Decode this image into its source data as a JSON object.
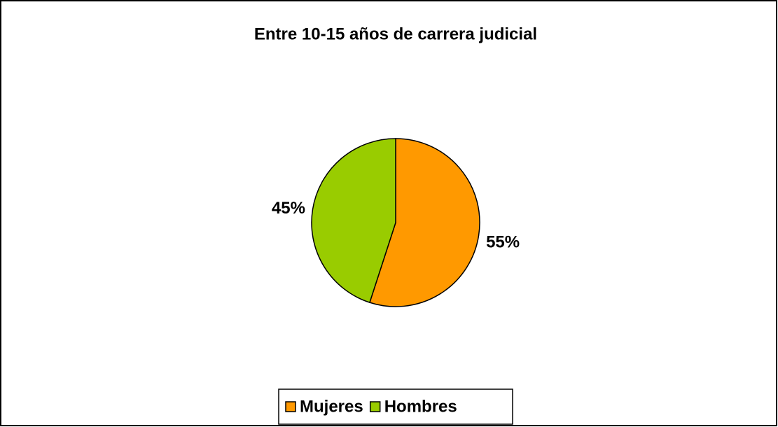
{
  "chart_data": {
    "type": "pie",
    "title": "Entre 10-15 años de carrera judicial",
    "categories": [
      "Mujeres",
      "Hombres"
    ],
    "values": [
      55,
      45
    ],
    "value_labels": [
      "55%",
      "45%"
    ],
    "colors": [
      "#ff9900",
      "#99cc00"
    ],
    "legend": "bottom"
  }
}
